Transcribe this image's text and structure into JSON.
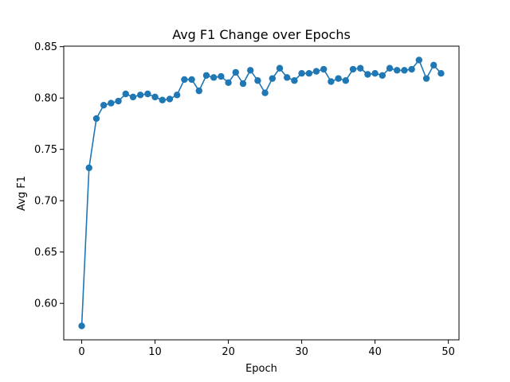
{
  "chart_data": {
    "type": "line",
    "title": "Avg F1 Change over Epochs",
    "xlabel": "Epoch",
    "ylabel": "Avg F1",
    "xlim": [
      -2.45,
      51.45
    ],
    "ylim": [
      0.5645,
      0.8505
    ],
    "xticks": [
      0,
      10,
      20,
      30,
      40,
      50
    ],
    "yticks": [
      0.6,
      0.65,
      0.7,
      0.75,
      0.8,
      0.85
    ],
    "ytick_labels": [
      "0.60",
      "0.65",
      "0.70",
      "0.75",
      "0.80",
      "0.85"
    ],
    "grid": false,
    "marker": "circle",
    "series": [
      {
        "color": "#1f77b4",
        "x": [
          0,
          1,
          2,
          3,
          4,
          5,
          6,
          7,
          8,
          9,
          10,
          11,
          12,
          13,
          14,
          15,
          16,
          17,
          18,
          19,
          20,
          21,
          22,
          23,
          24,
          25,
          26,
          27,
          28,
          29,
          30,
          31,
          32,
          33,
          34,
          35,
          36,
          37,
          38,
          39,
          40,
          41,
          42,
          43,
          44,
          45,
          46,
          47,
          48,
          49
        ],
        "y": [
          0.578,
          0.732,
          0.78,
          0.793,
          0.795,
          0.797,
          0.804,
          0.801,
          0.803,
          0.804,
          0.801,
          0.798,
          0.799,
          0.803,
          0.818,
          0.818,
          0.807,
          0.822,
          0.82,
          0.821,
          0.815,
          0.825,
          0.814,
          0.827,
          0.817,
          0.805,
          0.819,
          0.829,
          0.82,
          0.817,
          0.824,
          0.824,
          0.826,
          0.828,
          0.816,
          0.819,
          0.817,
          0.828,
          0.829,
          0.823,
          0.824,
          0.822,
          0.829,
          0.827,
          0.827,
          0.828,
          0.837,
          0.819,
          0.832,
          0.824
        ]
      }
    ]
  }
}
